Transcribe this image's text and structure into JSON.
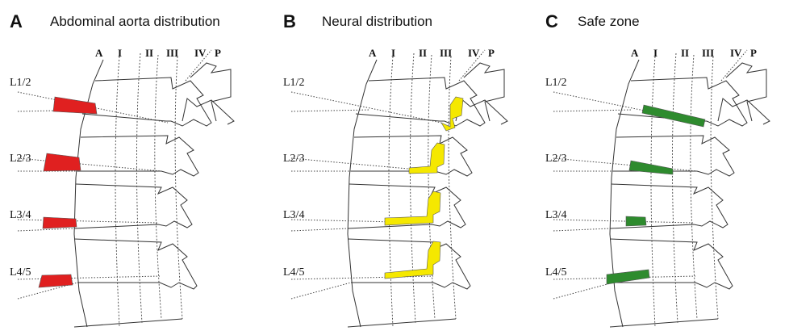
{
  "panels": [
    {
      "letter": "A",
      "title": "Abdominal aorta distribution",
      "zones": [
        "A",
        "I",
        "II",
        "III",
        "IV",
        "P"
      ],
      "levels": [
        "L1/2",
        "L2/3",
        "L3/4",
        "L4/5"
      ],
      "highlight_color": "#e02020"
    },
    {
      "letter": "B",
      "title": "Neural distribution",
      "zones": [
        "A",
        "I",
        "II",
        "III",
        "IV",
        "P"
      ],
      "levels": [
        "L1/2",
        "L2/3",
        "L3/4",
        "L4/5"
      ],
      "highlight_color": "#f5e800"
    },
    {
      "letter": "C",
      "title": "Safe zone",
      "zones": [
        "A",
        "I",
        "II",
        "III",
        "IV",
        "P"
      ],
      "levels": [
        "L1/2",
        "L2/3",
        "L3/4",
        "L4/5"
      ],
      "highlight_color": "#2e8b2e"
    }
  ]
}
